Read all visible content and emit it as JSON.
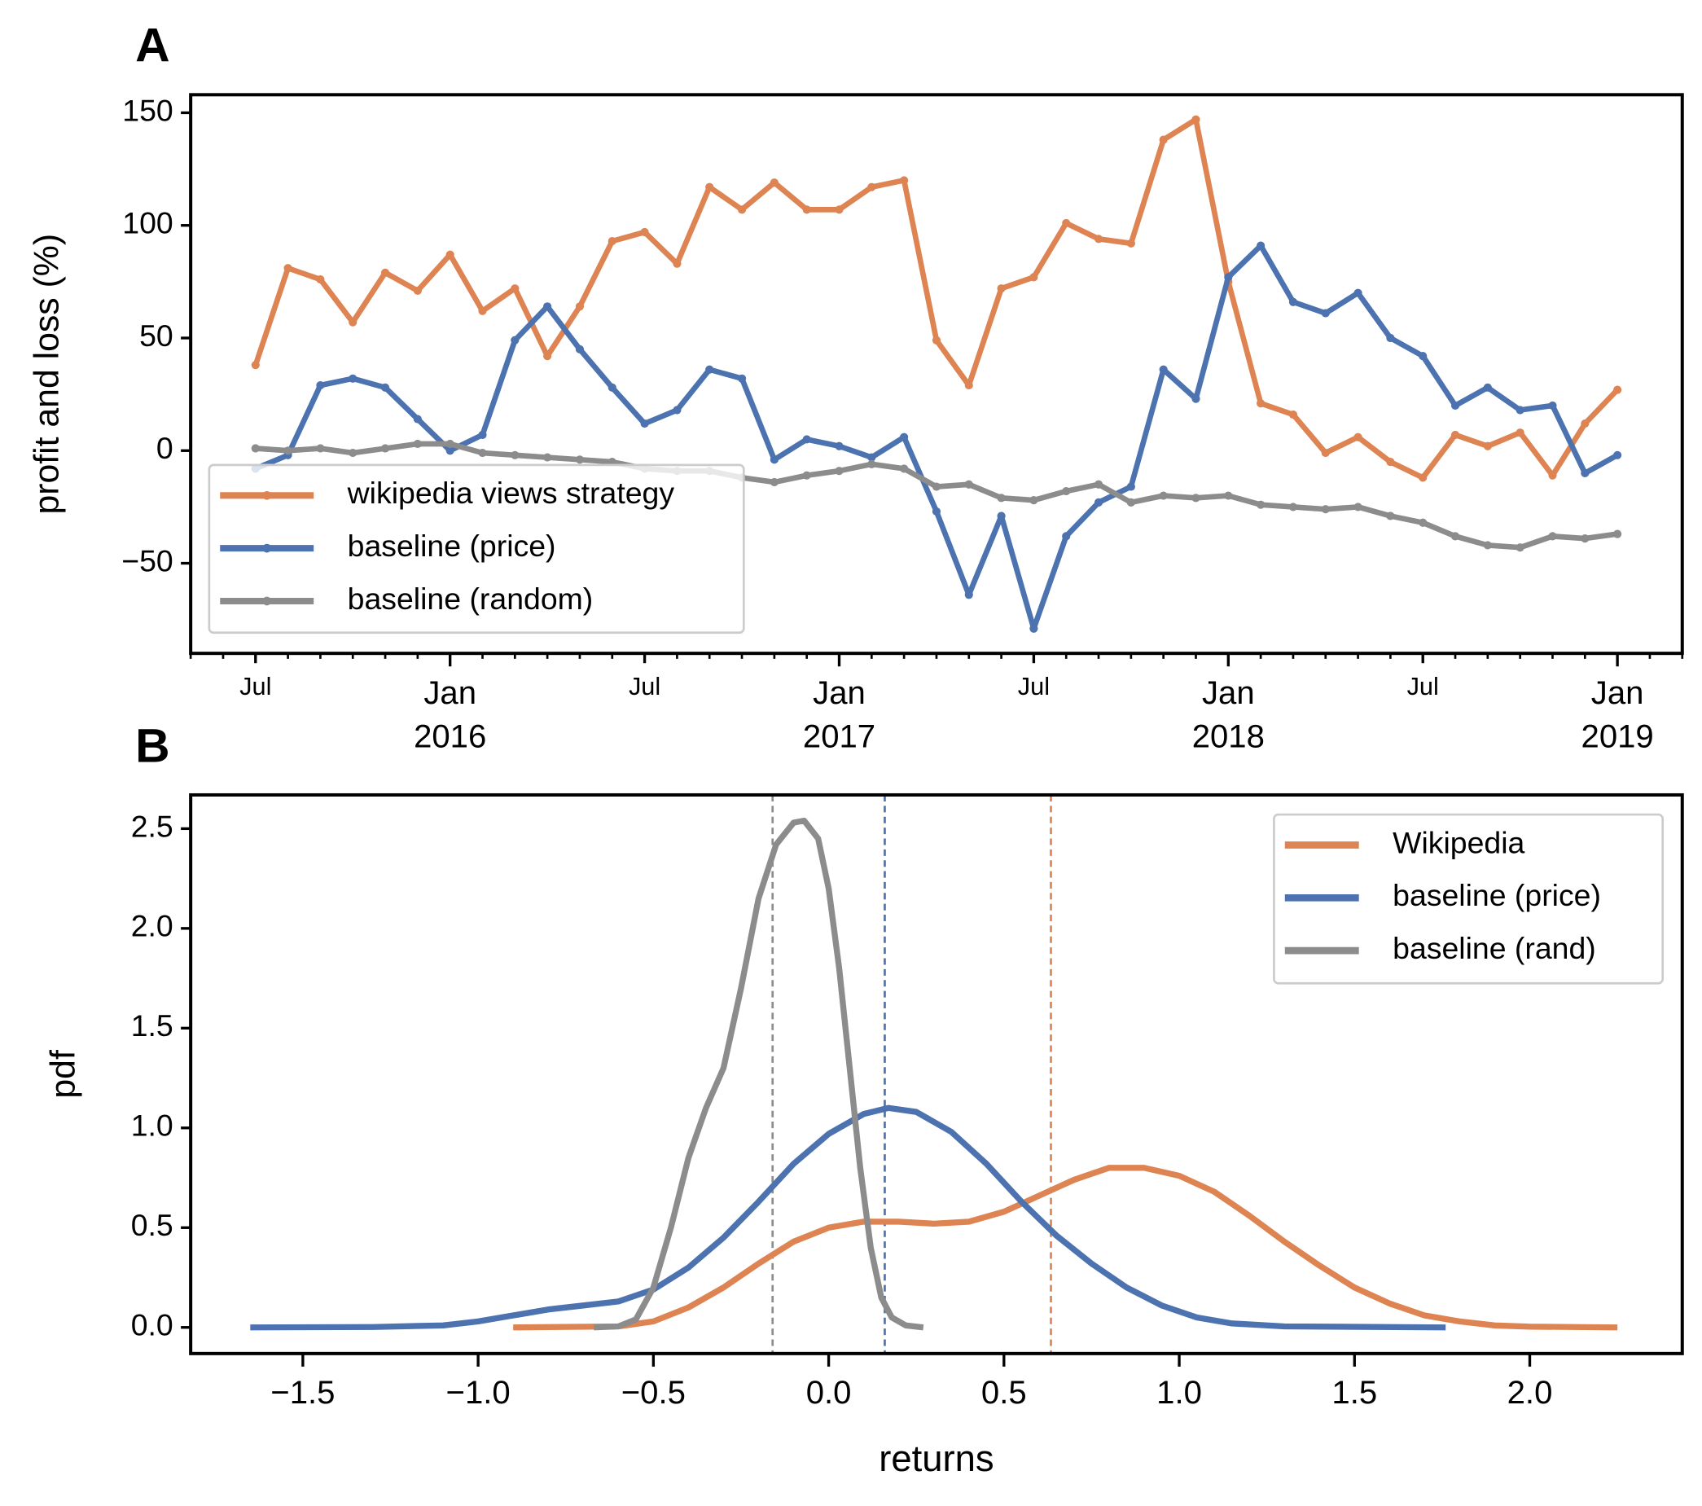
{
  "chart_data": [
    {
      "type": "line",
      "panel": "A",
      "ylabel": "profit and loss (%)",
      "x": [
        "2015-07",
        "2015-08",
        "2015-09",
        "2015-10",
        "2015-11",
        "2015-12",
        "2016-01",
        "2016-02",
        "2016-03",
        "2016-04",
        "2016-05",
        "2016-06",
        "2016-07",
        "2016-08",
        "2016-09",
        "2016-10",
        "2016-11",
        "2016-12",
        "2017-01",
        "2017-02",
        "2017-03",
        "2017-04",
        "2017-05",
        "2017-06",
        "2017-07",
        "2017-08",
        "2017-09",
        "2017-10",
        "2017-11",
        "2017-12",
        "2018-01",
        "2018-02",
        "2018-03",
        "2018-04",
        "2018-05",
        "2018-06",
        "2018-07",
        "2018-08",
        "2018-09",
        "2018-10",
        "2018-11",
        "2018-12",
        "2019-01"
      ],
      "series": [
        {
          "name": "wikipedia views strategy",
          "color": "#dd8452",
          "values": [
            38,
            81,
            76,
            57,
            79,
            71,
            87,
            62,
            72,
            42,
            64,
            93,
            97,
            83,
            117,
            107,
            119,
            107,
            107,
            117,
            120,
            49,
            29,
            72,
            77,
            101,
            94,
            92,
            138,
            147,
            75,
            21,
            16,
            -1,
            6,
            -5,
            -12,
            7,
            2,
            8,
            -11,
            12,
            27
          ]
        },
        {
          "name": "baseline (price)",
          "color": "#4c72b0",
          "values": [
            -8,
            -2,
            29,
            32,
            28,
            14,
            0,
            7,
            49,
            64,
            45,
            28,
            12,
            18,
            36,
            32,
            -4,
            5,
            2,
            -3,
            6,
            -27,
            -64,
            -29,
            -79,
            -38,
            -23,
            -16,
            36,
            23,
            77,
            91,
            66,
            61,
            70,
            50,
            42,
            20,
            28,
            18,
            20,
            -10,
            -2
          ]
        },
        {
          "name": "baseline (random)",
          "color": "#8c8c8c",
          "values": [
            1,
            0,
            1,
            -1,
            1,
            3,
            3,
            -1,
            -2,
            -3,
            -4,
            -5,
            -8,
            -9,
            -9,
            -12,
            -14,
            -11,
            -9,
            -6,
            -8,
            -16,
            -15,
            -21,
            -22,
            -18,
            -15,
            -23,
            -20,
            -21,
            -20,
            -24,
            -25,
            -26,
            -25,
            -29,
            -32,
            -38,
            -42,
            -43,
            -38,
            -39,
            -37
          ]
        }
      ],
      "xlim": [
        "2015-05",
        "2019-03"
      ],
      "xticks": [
        {
          "value": "2015-07",
          "label": "Jul"
        },
        {
          "value": "2016-01",
          "label": "Jan 2016"
        },
        {
          "value": "2016-07",
          "label": "Jul"
        },
        {
          "value": "2017-01",
          "label": "Jan 2017"
        },
        {
          "value": "2017-07",
          "label": "Jul"
        },
        {
          "value": "2018-01",
          "label": "Jan 2018"
        },
        {
          "value": "2018-07",
          "label": "Jul"
        },
        {
          "value": "2019-01",
          "label": "Jan 2019"
        }
      ],
      "ylim": [
        -90,
        158
      ],
      "yticks": [
        {
          "value": -50,
          "label": "−50"
        },
        0,
        50,
        100,
        150
      ],
      "markers": true,
      "legend": "lower left"
    },
    {
      "type": "line",
      "panel": "B",
      "ylabel": "pdf",
      "xlabel": "returns",
      "series": [
        {
          "name": "Wikipedia",
          "color": "#dd8452",
          "x": [
            -0.9,
            -0.6,
            -0.5,
            -0.4,
            -0.3,
            -0.2,
            -0.1,
            0.0,
            0.1,
            0.2,
            0.3,
            0.4,
            0.5,
            0.6,
            0.7,
            0.8,
            0.9,
            1.0,
            1.1,
            1.2,
            1.3,
            1.4,
            1.5,
            1.6,
            1.7,
            1.8,
            1.9,
            2.0,
            2.25
          ],
          "values": [
            0,
            0.005,
            0.03,
            0.1,
            0.2,
            0.32,
            0.43,
            0.5,
            0.53,
            0.53,
            0.52,
            0.53,
            0.58,
            0.66,
            0.74,
            0.8,
            0.8,
            0.76,
            0.68,
            0.56,
            0.43,
            0.31,
            0.2,
            0.12,
            0.06,
            0.03,
            0.01,
            0.004,
            0
          ]
        },
        {
          "name": "baseline (price)",
          "color": "#4c72b0",
          "x": [
            -1.65,
            -1.3,
            -1.1,
            -1.0,
            -0.9,
            -0.8,
            -0.7,
            -0.6,
            -0.5,
            -0.4,
            -0.3,
            -0.2,
            -0.1,
            0.0,
            0.1,
            0.17,
            0.25,
            0.35,
            0.45,
            0.55,
            0.65,
            0.75,
            0.85,
            0.95,
            1.05,
            1.15,
            1.3,
            1.76
          ],
          "values": [
            0,
            0.002,
            0.01,
            0.03,
            0.06,
            0.09,
            0.11,
            0.13,
            0.19,
            0.3,
            0.45,
            0.63,
            0.82,
            0.97,
            1.07,
            1.1,
            1.08,
            0.98,
            0.82,
            0.63,
            0.46,
            0.32,
            0.2,
            0.11,
            0.05,
            0.02,
            0.005,
            0
          ]
        },
        {
          "name": "baseline (rand)",
          "color": "#8c8c8c",
          "x": [
            -0.67,
            -0.6,
            -0.55,
            -0.5,
            -0.45,
            -0.4,
            -0.35,
            -0.3,
            -0.25,
            -0.2,
            -0.15,
            -0.1,
            -0.07,
            -0.03,
            0.0,
            0.03,
            0.06,
            0.09,
            0.12,
            0.15,
            0.18,
            0.22,
            0.27
          ],
          "values": [
            0,
            0.005,
            0.04,
            0.2,
            0.5,
            0.85,
            1.1,
            1.3,
            1.7,
            2.15,
            2.42,
            2.53,
            2.54,
            2.45,
            2.2,
            1.8,
            1.3,
            0.8,
            0.4,
            0.15,
            0.05,
            0.01,
            0
          ]
        }
      ],
      "vlines": [
        {
          "value": 0.634,
          "color": "#dd8452"
        },
        {
          "value": 0.16,
          "color": "#4c72b0"
        },
        {
          "value": -0.16,
          "color": "#8c8c8c"
        }
      ],
      "xlim": [
        -1.82,
        2.435
      ],
      "xticks": [
        {
          "value": -1.5,
          "label": "−1.5"
        },
        {
          "value": -1.0,
          "label": "−1.0"
        },
        {
          "value": -0.5,
          "label": "−0.5"
        },
        {
          "value": 0,
          "label": "0.0"
        },
        0.5,
        {
          "value": 1,
          "label": "1.0"
        },
        1.5,
        {
          "value": 2,
          "label": "2.0"
        }
      ],
      "ylim": [
        -0.131,
        2.669
      ],
      "yticks": [
        {
          "value": 0,
          "label": "0.0"
        },
        0.5,
        {
          "value": 1,
          "label": "1.0"
        },
        1.5,
        {
          "value": 2,
          "label": "2.0"
        },
        2.5
      ],
      "markers": false,
      "legend": "upper right"
    }
  ]
}
